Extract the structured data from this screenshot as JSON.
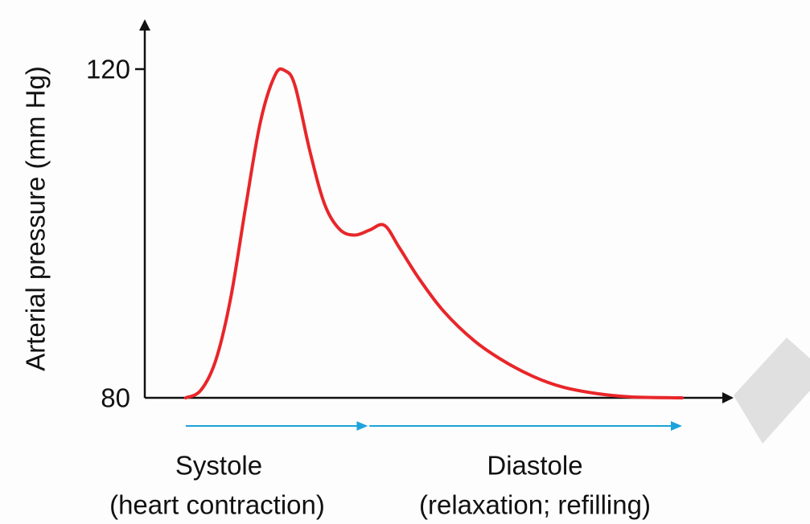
{
  "chart_data": {
    "type": "line",
    "ylabel": "Arterial pressure (mm Hg)",
    "xlabel": "",
    "ylim": [
      80,
      120
    ],
    "yticks": [
      {
        "value": 80,
        "label": "80"
      },
      {
        "value": 120,
        "label": "120"
      }
    ],
    "series": [
      {
        "color": "#e8262a",
        "points": [
          [
            0.0,
            80.0
          ],
          [
            0.03,
            80.9
          ],
          [
            0.06,
            84.5
          ],
          [
            0.09,
            92.0
          ],
          [
            0.12,
            103.0
          ],
          [
            0.15,
            113.5
          ],
          [
            0.18,
            119.3
          ],
          [
            0.2,
            119.8
          ],
          [
            0.22,
            118.0
          ],
          [
            0.25,
            110.0
          ],
          [
            0.28,
            103.5
          ],
          [
            0.31,
            100.5
          ],
          [
            0.34,
            99.8
          ],
          [
            0.37,
            100.4
          ],
          [
            0.4,
            101.0
          ],
          [
            0.43,
            98.3
          ],
          [
            0.47,
            94.5
          ],
          [
            0.52,
            90.5
          ],
          [
            0.58,
            87.0
          ],
          [
            0.64,
            84.5
          ],
          [
            0.7,
            82.6
          ],
          [
            0.76,
            81.3
          ],
          [
            0.83,
            80.5
          ],
          [
            0.9,
            80.1
          ],
          [
            1.0,
            80.0
          ]
        ]
      }
    ],
    "phase_arrow_color": "#1ba3dd",
    "phases": [
      {
        "name": "Systole",
        "description": "(heart contraction)",
        "start": 0.0,
        "end": 0.37
      },
      {
        "name": "Diastole",
        "description": "(relaxation; refilling)",
        "start": 0.37,
        "end": 1.0
      }
    ],
    "grid": false
  }
}
